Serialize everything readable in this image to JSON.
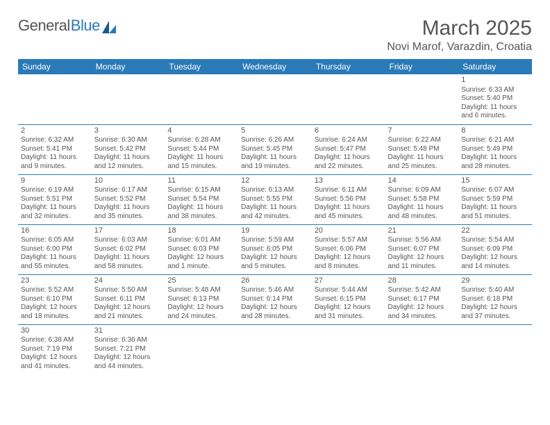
{
  "logo": {
    "part1": "General",
    "part2": "Blue"
  },
  "title": "March 2025",
  "location": "Novi Marof, Varazdin, Croatia",
  "colors": {
    "header_bg": "#2a7ab8",
    "header_text": "#ffffff",
    "body_text": "#555555",
    "border": "#2a7ab8",
    "background": "#ffffff",
    "logo_accent": "#2a7ab8"
  },
  "weekdays": [
    "Sunday",
    "Monday",
    "Tuesday",
    "Wednesday",
    "Thursday",
    "Friday",
    "Saturday"
  ],
  "days": [
    {
      "n": "1",
      "sunrise": "6:33 AM",
      "sunset": "5:40 PM",
      "daylight": "11 hours and 6 minutes."
    },
    {
      "n": "2",
      "sunrise": "6:32 AM",
      "sunset": "5:41 PM",
      "daylight": "11 hours and 9 minutes."
    },
    {
      "n": "3",
      "sunrise": "6:30 AM",
      "sunset": "5:42 PM",
      "daylight": "11 hours and 12 minutes."
    },
    {
      "n": "4",
      "sunrise": "6:28 AM",
      "sunset": "5:44 PM",
      "daylight": "11 hours and 15 minutes."
    },
    {
      "n": "5",
      "sunrise": "6:26 AM",
      "sunset": "5:45 PM",
      "daylight": "11 hours and 19 minutes."
    },
    {
      "n": "6",
      "sunrise": "6:24 AM",
      "sunset": "5:47 PM",
      "daylight": "11 hours and 22 minutes."
    },
    {
      "n": "7",
      "sunrise": "6:22 AM",
      "sunset": "5:48 PM",
      "daylight": "11 hours and 25 minutes."
    },
    {
      "n": "8",
      "sunrise": "6:21 AM",
      "sunset": "5:49 PM",
      "daylight": "11 hours and 28 minutes."
    },
    {
      "n": "9",
      "sunrise": "6:19 AM",
      "sunset": "5:51 PM",
      "daylight": "11 hours and 32 minutes."
    },
    {
      "n": "10",
      "sunrise": "6:17 AM",
      "sunset": "5:52 PM",
      "daylight": "11 hours and 35 minutes."
    },
    {
      "n": "11",
      "sunrise": "6:15 AM",
      "sunset": "5:54 PM",
      "daylight": "11 hours and 38 minutes."
    },
    {
      "n": "12",
      "sunrise": "6:13 AM",
      "sunset": "5:55 PM",
      "daylight": "11 hours and 42 minutes."
    },
    {
      "n": "13",
      "sunrise": "6:11 AM",
      "sunset": "5:56 PM",
      "daylight": "11 hours and 45 minutes."
    },
    {
      "n": "14",
      "sunrise": "6:09 AM",
      "sunset": "5:58 PM",
      "daylight": "11 hours and 48 minutes."
    },
    {
      "n": "15",
      "sunrise": "6:07 AM",
      "sunset": "5:59 PM",
      "daylight": "11 hours and 51 minutes."
    },
    {
      "n": "16",
      "sunrise": "6:05 AM",
      "sunset": "6:00 PM",
      "daylight": "11 hours and 55 minutes."
    },
    {
      "n": "17",
      "sunrise": "6:03 AM",
      "sunset": "6:02 PM",
      "daylight": "11 hours and 58 minutes."
    },
    {
      "n": "18",
      "sunrise": "6:01 AM",
      "sunset": "6:03 PM",
      "daylight": "12 hours and 1 minute."
    },
    {
      "n": "19",
      "sunrise": "5:59 AM",
      "sunset": "6:05 PM",
      "daylight": "12 hours and 5 minutes."
    },
    {
      "n": "20",
      "sunrise": "5:57 AM",
      "sunset": "6:06 PM",
      "daylight": "12 hours and 8 minutes."
    },
    {
      "n": "21",
      "sunrise": "5:56 AM",
      "sunset": "6:07 PM",
      "daylight": "12 hours and 11 minutes."
    },
    {
      "n": "22",
      "sunrise": "5:54 AM",
      "sunset": "6:09 PM",
      "daylight": "12 hours and 14 minutes."
    },
    {
      "n": "23",
      "sunrise": "5:52 AM",
      "sunset": "6:10 PM",
      "daylight": "12 hours and 18 minutes."
    },
    {
      "n": "24",
      "sunrise": "5:50 AM",
      "sunset": "6:11 PM",
      "daylight": "12 hours and 21 minutes."
    },
    {
      "n": "25",
      "sunrise": "5:48 AM",
      "sunset": "6:13 PM",
      "daylight": "12 hours and 24 minutes."
    },
    {
      "n": "26",
      "sunrise": "5:46 AM",
      "sunset": "6:14 PM",
      "daylight": "12 hours and 28 minutes."
    },
    {
      "n": "27",
      "sunrise": "5:44 AM",
      "sunset": "6:15 PM",
      "daylight": "12 hours and 31 minutes."
    },
    {
      "n": "28",
      "sunrise": "5:42 AM",
      "sunset": "6:17 PM",
      "daylight": "12 hours and 34 minutes."
    },
    {
      "n": "29",
      "sunrise": "5:40 AM",
      "sunset": "6:18 PM",
      "daylight": "12 hours and 37 minutes."
    },
    {
      "n": "30",
      "sunrise": "6:38 AM",
      "sunset": "7:19 PM",
      "daylight": "12 hours and 41 minutes."
    },
    {
      "n": "31",
      "sunrise": "6:36 AM",
      "sunset": "7:21 PM",
      "daylight": "12 hours and 44 minutes."
    }
  ],
  "labels": {
    "sunrise": "Sunrise:",
    "sunset": "Sunset:",
    "daylight": "Daylight:"
  },
  "layout": {
    "first_day_column": 6,
    "columns": 7,
    "rows": 6,
    "cell_font_size": 10,
    "header_font_size": 12,
    "title_font_size": 30
  }
}
